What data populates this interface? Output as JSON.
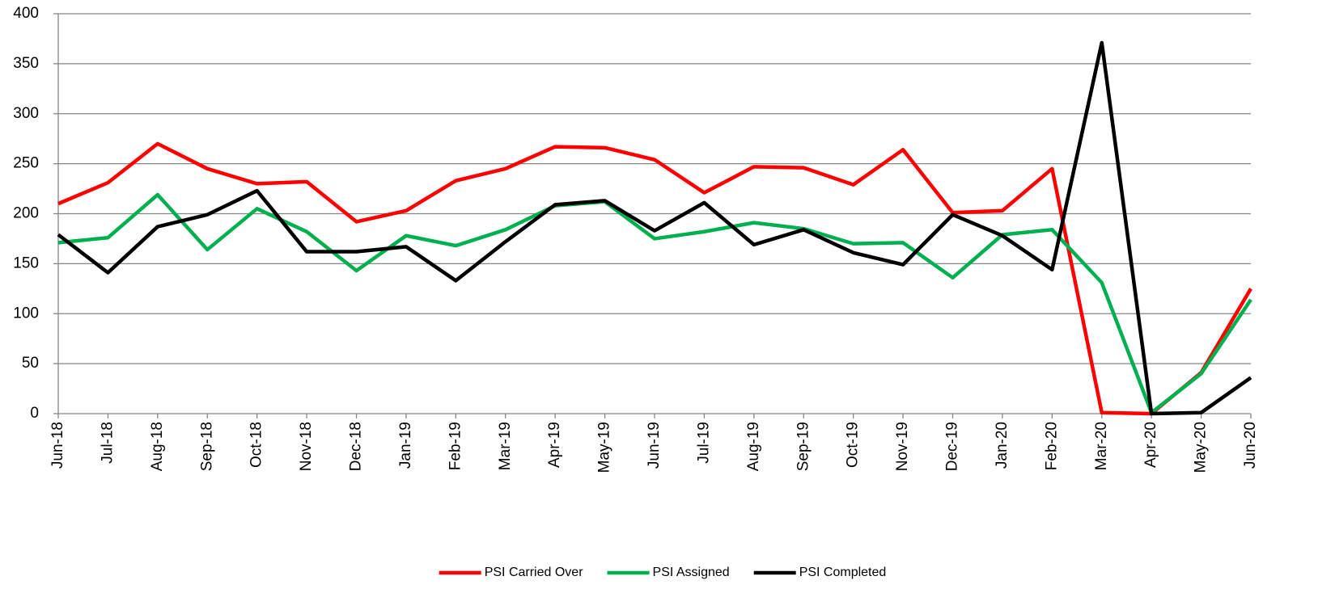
{
  "chart_data": {
    "type": "line",
    "categories": [
      "Jun-18",
      "Jul-18",
      "Aug-18",
      "Sep-18",
      "Oct-18",
      "Nov-18",
      "Dec-18",
      "Jan-19",
      "Feb-19",
      "Mar-19",
      "Apr-19",
      "May-19",
      "Jun-19",
      "Jul-19",
      "Aug-19",
      "Sep-19",
      "Oct-19",
      "Nov-19",
      "Dec-19",
      "Jan-20",
      "Feb-20",
      "Mar-20",
      "Apr-20",
      "May-20",
      "Jun-20"
    ],
    "series": [
      {
        "name": "PSI Carried Over",
        "color": "#ff0000",
        "values": [
          210,
          231,
          270,
          245,
          230,
          232,
          192,
          203,
          233,
          245,
          267,
          266,
          254,
          221,
          247,
          246,
          229,
          264,
          201,
          203,
          245,
          1,
          0,
          41,
          125
        ]
      },
      {
        "name": "PSI Assigned",
        "color": "#00b050",
        "values": [
          171,
          176,
          219,
          164,
          205,
          182,
          143,
          178,
          168,
          184,
          208,
          212,
          175,
          182,
          191,
          185,
          170,
          171,
          136,
          179,
          184,
          131,
          1,
          40,
          114
        ]
      },
      {
        "name": "PSI Completed",
        "color": "#000000",
        "values": [
          179,
          141,
          187,
          199,
          223,
          162,
          162,
          167,
          133,
          172,
          209,
          213,
          183,
          211,
          169,
          184,
          161,
          149,
          199,
          178,
          144,
          371,
          0,
          1,
          36
        ]
      }
    ],
    "ylim": [
      0,
      400
    ],
    "yticks": [
      0,
      50,
      100,
      150,
      200,
      250,
      300,
      350,
      400
    ],
    "grid": true,
    "legend": "bottom"
  }
}
